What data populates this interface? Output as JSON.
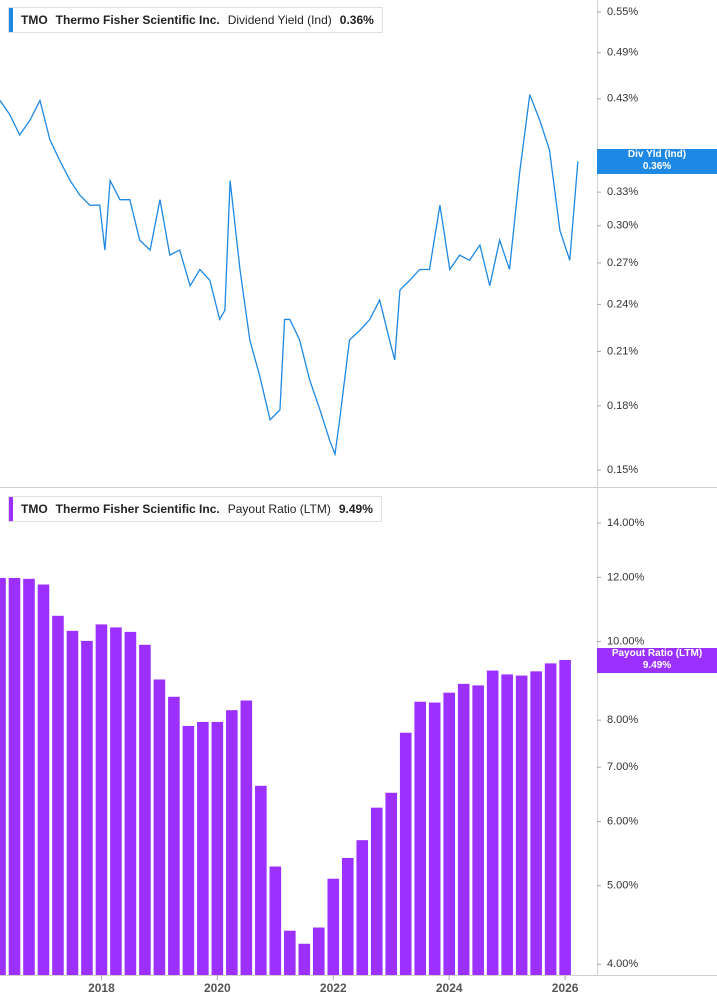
{
  "chart_data": [
    {
      "type": "line",
      "ticker": "TMO",
      "company": "Thermo Fisher Scientific Inc.",
      "series_name": "Dividend Yield (Ind)",
      "latest_label": "0.36%",
      "badge_name": "Div Yld (Ind)",
      "color": "#1e88e5",
      "log_scale": true,
      "x": [
        2016.25,
        2016.42,
        2016.59,
        2016.77,
        2016.94,
        2017.11,
        2017.28,
        2017.46,
        2017.63,
        2017.8,
        2017.97,
        2018.06,
        2018.15,
        2018.32,
        2018.49,
        2018.66,
        2018.84,
        2019.01,
        2019.18,
        2019.35,
        2019.53,
        2019.7,
        2019.87,
        2020.04,
        2020.13,
        2020.22,
        2020.39,
        2020.56,
        2020.73,
        2020.91,
        2021.08,
        2021.16,
        2021.25,
        2021.42,
        2021.59,
        2021.77,
        2021.94,
        2022.03,
        2022.11,
        2022.28,
        2022.46,
        2022.63,
        2022.8,
        2022.97,
        2023.06,
        2023.15,
        2023.32,
        2023.49,
        2023.66,
        2023.84,
        2024.01,
        2024.18,
        2024.35,
        2024.53,
        2024.7,
        2024.87,
        2025.04,
        2025.22,
        2025.39,
        2025.56,
        2025.73,
        2025.91,
        2026.08,
        2026.22
      ],
      "values": [
        0.428,
        0.411,
        0.388,
        0.405,
        0.428,
        0.383,
        0.361,
        0.341,
        0.327,
        0.318,
        0.318,
        0.28,
        0.341,
        0.323,
        0.323,
        0.288,
        0.28,
        0.323,
        0.276,
        0.28,
        0.253,
        0.265,
        0.257,
        0.23,
        0.236,
        0.341,
        0.265,
        0.217,
        0.196,
        0.173,
        0.178,
        0.23,
        0.23,
        0.217,
        0.194,
        0.178,
        0.163,
        0.157,
        0.173,
        0.217,
        0.223,
        0.23,
        0.243,
        0.217,
        0.205,
        0.25,
        0.257,
        0.265,
        0.265,
        0.318,
        0.265,
        0.276,
        0.272,
        0.284,
        0.253,
        0.288,
        0.265,
        0.351,
        0.435,
        0.405,
        0.372,
        0.296,
        0.272,
        0.36
      ],
      "xlim": [
        2016.25,
        2026.55
      ],
      "ylim": [
        0.143,
        0.569
      ],
      "yticks": [
        {
          "value": 0.55,
          "label": "0.55%"
        },
        {
          "value": 0.49,
          "label": "0.49%"
        },
        {
          "value": 0.43,
          "label": "0.43%"
        },
        {
          "value": 0.33,
          "label": "0.33%"
        },
        {
          "value": 0.3,
          "label": "0.30%"
        },
        {
          "value": 0.27,
          "label": "0.27%"
        },
        {
          "value": 0.24,
          "label": "0.24%"
        },
        {
          "value": 0.21,
          "label": "0.21%"
        },
        {
          "value": 0.18,
          "label": "0.18%"
        },
        {
          "value": 0.15,
          "label": "0.15%"
        }
      ]
    },
    {
      "type": "bar",
      "ticker": "TMO",
      "company": "Thermo Fisher Scientific Inc.",
      "series_name": "Payout Ratio (LTM)",
      "latest_label": "9.49%",
      "color": "#9b30ff",
      "log_scale": true,
      "x": [
        2016.25,
        2016.5,
        2016.75,
        2017,
        2017.25,
        2017.5,
        2017.75,
        2018,
        2018.25,
        2018.5,
        2018.75,
        2019,
        2019.25,
        2019.5,
        2019.75,
        2020,
        2020.25,
        2020.5,
        2020.75,
        2021,
        2021.25,
        2021.5,
        2021.75,
        2022,
        2022.25,
        2022.5,
        2022.75,
        2023,
        2023.25,
        2023.5,
        2023.75,
        2024,
        2024.25,
        2024.5,
        2024.75,
        2025,
        2025.25,
        2025.5,
        2025.75,
        2026
      ],
      "values": [
        11.98,
        11.98,
        11.95,
        11.76,
        10.76,
        10.31,
        10.02,
        10.5,
        10.41,
        10.28,
        9.91,
        8.98,
        8.55,
        7.87,
        7.96,
        7.96,
        8.23,
        8.46,
        6.64,
        5.28,
        4.4,
        4.24,
        4.44,
        5.1,
        5.41,
        5.69,
        6.24,
        6.51,
        7.72,
        8.43,
        8.41,
        8.65,
        8.87,
        8.83,
        9.21,
        9.11,
        9.08,
        9.19,
        9.4,
        9.49
      ],
      "xlim": [
        2016.25,
        2026.55
      ],
      "ylim": [
        3.88,
        15.38
      ],
      "xticks": [
        2018,
        2020,
        2022,
        2024,
        2026
      ],
      "yticks": [
        {
          "value": 14,
          "label": "14.00%"
        },
        {
          "value": 12,
          "label": "12.00%"
        },
        {
          "value": 10,
          "label": "10.00%"
        },
        {
          "value": 8,
          "label": "8.00%"
        },
        {
          "value": 7,
          "label": "7.00%"
        },
        {
          "value": 6,
          "label": "6.00%"
        },
        {
          "value": 5,
          "label": "5.00%"
        },
        {
          "value": 4,
          "label": "4.00%"
        }
      ]
    }
  ]
}
